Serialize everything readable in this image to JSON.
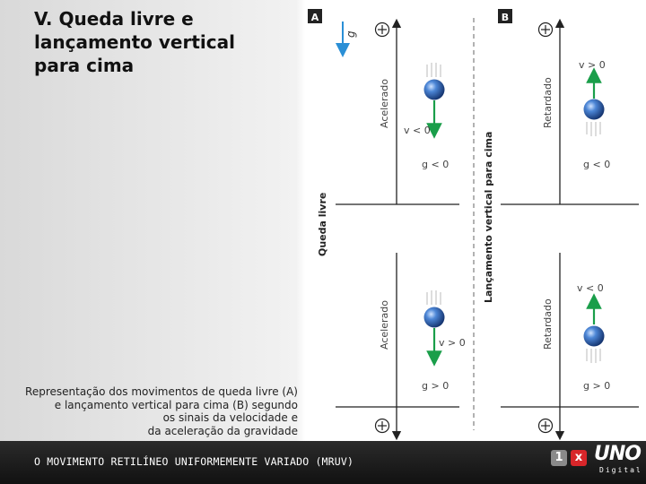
{
  "slide": {
    "title_line1": "V. Queda livre e",
    "title_line2": "lançamento vertical",
    "title_line3": "para cima"
  },
  "caption": {
    "line1": "Representação dos movimentos de queda livre (A)",
    "line2": "e lançamento vertical para cima (B) segundo",
    "line3": "os sinais da velocidade e",
    "line4": "da aceleração da gravidade"
  },
  "figure": {
    "label_a": "A",
    "label_b": "B",
    "gravity_symbol": "g",
    "side_label_a": "Queda livre",
    "side_label_b": "Lançamento vertical para cima",
    "a_top": {
      "motion": "Acelerado",
      "velocity": "v < 0",
      "acceleration": "g < 0"
    },
    "a_bottom": {
      "motion": "Acelerado",
      "velocity": "v > 0",
      "acceleration": "g > 0"
    },
    "b_top": {
      "motion": "Retardado",
      "velocity": "v > 0",
      "acceleration": "g < 0"
    },
    "b_bottom": {
      "motion": "Retardado",
      "velocity": "v < 0",
      "acceleration": "g > 0"
    },
    "colors": {
      "arrow_green": "#1a9e4a",
      "gravity_arrow": "#2a8fd6",
      "ball": "#1f4f9a"
    }
  },
  "footer": {
    "text": "O MOVIMENTO RETILÍNEO UNIFORMEMENTE VARIADO (MRUV)",
    "logo_box1": "1",
    "logo_box2": "x",
    "logo_main": "UNO",
    "logo_sub": "Digital"
  }
}
